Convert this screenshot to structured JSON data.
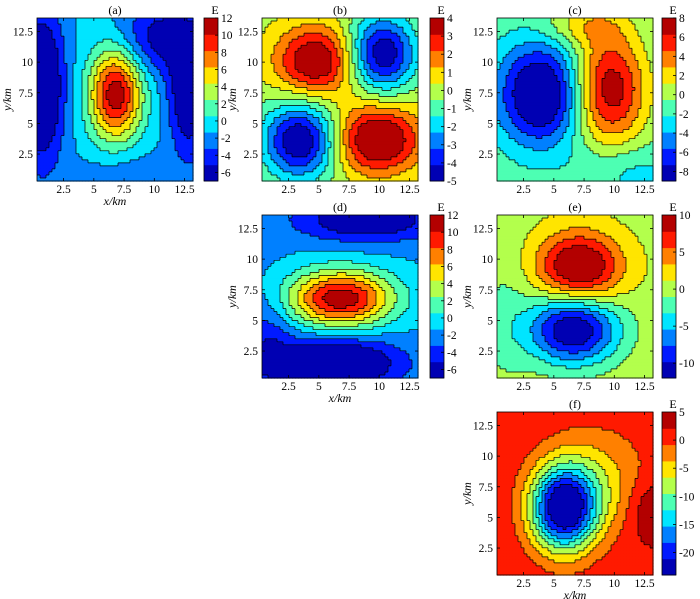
{
  "figure": {
    "x_axis_label": "x/km",
    "y_axis_label": "y/km",
    "colorbar_unit": "E"
  },
  "chart_data": [
    {
      "type": "heatmap",
      "title": "(a)",
      "x_ticks": [
        "2.5",
        "5",
        "7.5",
        "10",
        "12.5"
      ],
      "y_ticks": [
        "2.5",
        "5",
        "7.5",
        "10",
        "12.5"
      ],
      "xlim": [
        0.3,
        13.2
      ],
      "ylim": [
        0.3,
        13.6
      ],
      "show_xlabel": true,
      "show_ylabel": true,
      "colorbar": {
        "min": -7,
        "max": 12,
        "ticks": [
          "12",
          "10",
          "8",
          "6",
          "4",
          "2",
          "0",
          "-2",
          "-4",
          "-6"
        ]
      },
      "features": [
        {
          "kind": "high",
          "x": 6.8,
          "y": 7.4,
          "sx": 1.5,
          "sy": 2.6,
          "amp": 12.5
        },
        {
          "kind": "low",
          "x": 0.7,
          "y": 8,
          "sx": 1.3,
          "sy": 4.5,
          "amp": -8
        },
        {
          "kind": "low",
          "x": 12.9,
          "y": 7.5,
          "sx": 1.2,
          "sy": 3.5,
          "amp": -7
        },
        {
          "kind": "low",
          "x": 10.5,
          "y": 12,
          "sx": 2.5,
          "sy": 2,
          "amp": -5
        },
        {
          "kind": "trough",
          "x": 8,
          "y": 0.5,
          "sx": 3,
          "sy": 1.5,
          "amp": -2
        }
      ],
      "base": -1
    },
    {
      "type": "heatmap",
      "title": "(b)",
      "x_ticks": [
        "2.5",
        "5",
        "7.5",
        "10",
        "12.5"
      ],
      "y_ticks": [
        "2.5",
        "5",
        "7.5",
        "10",
        "12.5"
      ],
      "xlim": [
        0.3,
        13.2
      ],
      "ylim": [
        0.3,
        13.6
      ],
      "show_xlabel": false,
      "show_ylabel": true,
      "colorbar": {
        "min": -5,
        "max": 4,
        "ticks": [
          "4",
          "3",
          "2",
          "1",
          "0",
          "-1",
          "-2",
          "-3",
          "-4",
          "-5"
        ]
      },
      "features": [
        {
          "kind": "high",
          "x": 4.8,
          "y": 10.1,
          "sx": 2.4,
          "sy": 2,
          "amp": 4.3
        },
        {
          "kind": "high",
          "x": 9.8,
          "y": 3.7,
          "sx": 2.6,
          "sy": 2,
          "amp": 4.6
        },
        {
          "kind": "low",
          "x": 3.5,
          "y": 3.6,
          "sx": 2.2,
          "sy": 2.2,
          "amp": -5.2
        },
        {
          "kind": "low",
          "x": 10.2,
          "y": 10.7,
          "sx": 2,
          "sy": 2.2,
          "amp": -5
        }
      ],
      "base": 0
    },
    {
      "type": "heatmap",
      "title": "(c)",
      "x_ticks": [
        "2.5",
        "5",
        "7.5",
        "10",
        "12.5"
      ],
      "y_ticks": [
        "2.5",
        "5",
        "7.5",
        "10",
        "12.5"
      ],
      "xlim": [
        0.3,
        13.2
      ],
      "ylim": [
        0.3,
        13.6
      ],
      "show_xlabel": false,
      "show_ylabel": true,
      "colorbar": {
        "min": -9,
        "max": 8,
        "ticks": [
          "8",
          "6",
          "4",
          "2",
          "0",
          "-2",
          "-4",
          "-6",
          "-8"
        ]
      },
      "features": [
        {
          "kind": "high",
          "x": 9.5,
          "y": 7.8,
          "sx": 2.2,
          "sy": 3.2,
          "amp": 9
        },
        {
          "kind": "low",
          "x": 4,
          "y": 7.4,
          "sx": 2.6,
          "sy": 3,
          "amp": -9.5
        },
        {
          "kind": "high",
          "x": 7.5,
          "y": 13,
          "sx": 2.5,
          "sy": 1.2,
          "amp": 3
        },
        {
          "kind": "low",
          "x": 11,
          "y": 1.2,
          "sx": 3,
          "sy": 1.5,
          "amp": -2
        }
      ],
      "base": -1
    },
    {
      "type": "heatmap",
      "title": "(d)",
      "x_ticks": [
        "2.5",
        "5",
        "7.5",
        "10",
        "12.5"
      ],
      "y_ticks": [
        "2.5",
        "5",
        "7.5",
        "10",
        "12.5"
      ],
      "xlim": [
        0.3,
        13.2
      ],
      "ylim": [
        0.3,
        13.6
      ],
      "show_xlabel": true,
      "show_ylabel": true,
      "colorbar": {
        "min": -7,
        "max": 12,
        "ticks": [
          "12",
          "10",
          "8",
          "6",
          "4",
          "2",
          "0",
          "-2",
          "-4",
          "-6"
        ]
      },
      "features": [
        {
          "kind": "high",
          "x": 6.8,
          "y": 6.8,
          "sx": 3,
          "sy": 1.6,
          "amp": 13
        },
        {
          "kind": "low",
          "x": 6.5,
          "y": 1.5,
          "sx": 3.5,
          "sy": 1.4,
          "amp": -8
        },
        {
          "kind": "low",
          "x": 9,
          "y": 13.2,
          "sx": 4,
          "sy": 1.2,
          "amp": -6
        },
        {
          "kind": "low",
          "x": 0.8,
          "y": 3,
          "sx": 1.5,
          "sy": 3,
          "amp": -3
        }
      ],
      "base": -1.5
    },
    {
      "type": "heatmap",
      "title": "(e)",
      "x_ticks": [
        "2.5",
        "5",
        "7.5",
        "10",
        "12.5"
      ],
      "y_ticks": [
        "2.5",
        "5",
        "7.5",
        "10",
        "12.5"
      ],
      "xlim": [
        0.3,
        13.2
      ],
      "ylim": [
        0.3,
        13.6
      ],
      "show_xlabel": false,
      "show_ylabel": true,
      "colorbar": {
        "min": -12,
        "max": 10,
        "ticks": [
          "10",
          "5",
          "0",
          "-5",
          "-10"
        ]
      },
      "features": [
        {
          "kind": "high",
          "x": 7.1,
          "y": 9.3,
          "sx": 2.4,
          "sy": 2,
          "amp": 11
        },
        {
          "kind": "low",
          "x": 6.6,
          "y": 4.3,
          "sx": 2.6,
          "sy": 2,
          "amp": -13
        },
        {
          "kind": "low",
          "x": 1,
          "y": 5,
          "sx": 1.5,
          "sy": 4,
          "amp": -2
        }
      ],
      "base": 0.5
    },
    {
      "type": "heatmap",
      "title": "(f)",
      "x_ticks": [
        "2.5",
        "5",
        "7.5",
        "10",
        "12.5"
      ],
      "y_ticks": [
        "2.5",
        "5",
        "7.5",
        "10",
        "12.5"
      ],
      "xlim": [
        0.3,
        13.2
      ],
      "ylim": [
        0.3,
        13.6
      ],
      "show_xlabel": true,
      "show_ylabel": true,
      "colorbar": {
        "min": -24,
        "max": 5,
        "ticks": [
          "5",
          "0",
          "-5",
          "-10",
          "-15",
          "-20"
        ]
      },
      "features": [
        {
          "kind": "low",
          "x": 5.8,
          "y": 5.7,
          "sx": 1.9,
          "sy": 2.4,
          "amp": -26
        },
        {
          "kind": "low",
          "x": 8.5,
          "y": 8,
          "sx": 3,
          "sy": 3,
          "amp": -6
        },
        {
          "kind": "high",
          "x": 12.9,
          "y": 5.6,
          "sx": 1.2,
          "sy": 1.8,
          "amp": 4
        }
      ],
      "base": 1.5
    }
  ]
}
